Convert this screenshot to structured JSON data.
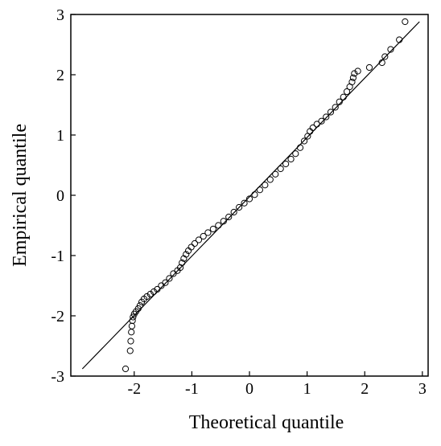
{
  "chart_data": {
    "type": "scatter",
    "title": "",
    "xlabel": "Theoretical quantile",
    "ylabel": "Empirical quantile",
    "xlim": [
      -3.1,
      3.1
    ],
    "ylim": [
      -3,
      3
    ],
    "x_ticks": [
      -2,
      -1,
      0,
      1,
      2,
      3
    ],
    "y_ticks": [
      -3,
      -2,
      -1,
      0,
      1,
      2,
      3
    ],
    "x_tick_labels": [
      "-2",
      "-1",
      "0",
      "1",
      "2",
      "3"
    ],
    "y_tick_labels": [
      "-3",
      "-2",
      "-1",
      "0",
      "1",
      "2",
      "3"
    ],
    "grid": false,
    "legend": "none",
    "reference_line": {
      "x": [
        -2.9,
        2.95
      ],
      "y": [
        -2.88,
        2.88
      ]
    },
    "series": [
      {
        "marker": "open-circle",
        "color": "#000000",
        "points": [
          [
            -2.15,
            -2.88
          ],
          [
            -2.07,
            -2.58
          ],
          [
            -2.06,
            -2.42
          ],
          [
            -2.05,
            -2.27
          ],
          [
            -2.04,
            -2.17
          ],
          [
            -2.03,
            -2.08
          ],
          [
            -2.02,
            -2.02
          ],
          [
            -2.0,
            -1.97
          ],
          [
            -1.97,
            -1.93
          ],
          [
            -1.93,
            -1.88
          ],
          [
            -1.9,
            -1.83
          ],
          [
            -1.87,
            -1.77
          ],
          [
            -1.83,
            -1.72
          ],
          [
            -1.78,
            -1.68
          ],
          [
            -1.72,
            -1.64
          ],
          [
            -1.66,
            -1.6
          ],
          [
            -1.6,
            -1.56
          ],
          [
            -1.53,
            -1.5
          ],
          [
            -1.46,
            -1.45
          ],
          [
            -1.39,
            -1.38
          ],
          [
            -1.32,
            -1.3
          ],
          [
            -1.25,
            -1.25
          ],
          [
            -1.2,
            -1.2
          ],
          [
            -1.17,
            -1.12
          ],
          [
            -1.14,
            -1.05
          ],
          [
            -1.1,
            -0.98
          ],
          [
            -1.06,
            -0.92
          ],
          [
            -1.01,
            -0.86
          ],
          [
            -0.95,
            -0.8
          ],
          [
            -0.88,
            -0.74
          ],
          [
            -0.8,
            -0.68
          ],
          [
            -0.72,
            -0.62
          ],
          [
            -0.63,
            -0.56
          ],
          [
            -0.54,
            -0.5
          ],
          [
            -0.45,
            -0.43
          ],
          [
            -0.36,
            -0.36
          ],
          [
            -0.27,
            -0.28
          ],
          [
            -0.18,
            -0.2
          ],
          [
            -0.09,
            -0.13
          ],
          [
            0.0,
            -0.06
          ],
          [
            0.09,
            0.01
          ],
          [
            0.18,
            0.09
          ],
          [
            0.27,
            0.17
          ],
          [
            0.36,
            0.26
          ],
          [
            0.45,
            0.35
          ],
          [
            0.54,
            0.44
          ],
          [
            0.63,
            0.52
          ],
          [
            0.72,
            0.6
          ],
          [
            0.8,
            0.69
          ],
          [
            0.88,
            0.79
          ],
          [
            0.95,
            0.9
          ],
          [
            1.01,
            0.98
          ],
          [
            1.05,
            1.06
          ],
          [
            1.1,
            1.12
          ],
          [
            1.17,
            1.18
          ],
          [
            1.25,
            1.23
          ],
          [
            1.33,
            1.3
          ],
          [
            1.41,
            1.38
          ],
          [
            1.49,
            1.46
          ],
          [
            1.56,
            1.55
          ],
          [
            1.63,
            1.63
          ],
          [
            1.69,
            1.72
          ],
          [
            1.74,
            1.8
          ],
          [
            1.78,
            1.88
          ],
          [
            1.8,
            1.95
          ],
          [
            1.82,
            2.02
          ],
          [
            1.88,
            2.06
          ],
          [
            2.08,
            2.12
          ],
          [
            2.3,
            2.2
          ],
          [
            2.35,
            2.3
          ],
          [
            2.45,
            2.42
          ],
          [
            2.6,
            2.58
          ],
          [
            2.7,
            2.88
          ]
        ]
      }
    ]
  }
}
